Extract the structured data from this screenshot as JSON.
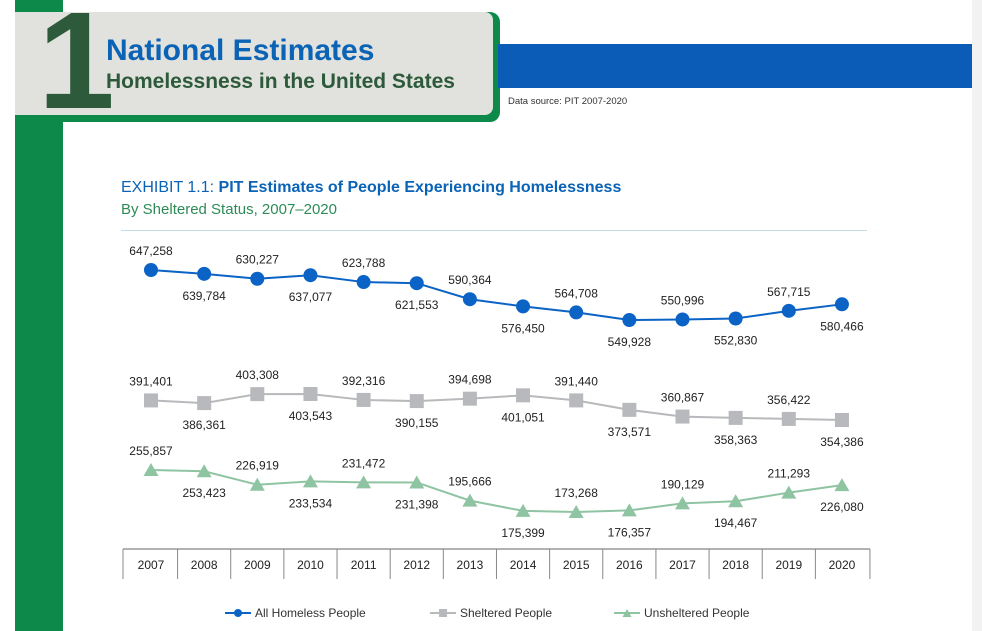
{
  "header": {
    "number": "1",
    "title": "National Estimates",
    "subtitle": "Homelessness in the United States",
    "data_source": "Data source: PIT 2007-2020"
  },
  "exhibit": {
    "label": "EXHIBIT 1.1:",
    "title": "PIT Estimates of People Experiencing Homelessness",
    "subtitle": "By Sheltered Status, 2007–2020"
  },
  "colors": {
    "all": "#0b63c6",
    "sheltered": "#b8b9bc",
    "unsheltered": "#8fc4a2"
  },
  "chart_data": {
    "type": "line",
    "x": [
      "2007",
      "2008",
      "2009",
      "2010",
      "2011",
      "2012",
      "2013",
      "2014",
      "2015",
      "2016",
      "2017",
      "2018",
      "2019",
      "2020"
    ],
    "series": [
      {
        "name": "All Homeless People",
        "values": [
          647258,
          639784,
          630227,
          637077,
          623788,
          621553,
          590364,
          576450,
          564708,
          549928,
          550996,
          552830,
          567715,
          580466
        ],
        "labels": [
          "647,258",
          "639,784",
          "630,227",
          "637,077",
          "623,788",
          "621,553",
          "590,364",
          "576,450",
          "564,708",
          "549,928",
          "550,996",
          "552,830",
          "567,715",
          "580,466"
        ]
      },
      {
        "name": "Sheltered People",
        "values": [
          391401,
          386361,
          403308,
          403543,
          392316,
          390155,
          394698,
          401051,
          391440,
          373571,
          360867,
          358363,
          356422,
          354386
        ],
        "labels": [
          "391,401",
          "386,361",
          "403,308",
          "403,543",
          "392,316",
          "390,155",
          "394,698",
          "401,051",
          "391,440",
          "373,571",
          "360,867",
          "358,363",
          "356,422",
          "354,386"
        ]
      },
      {
        "name": "Unsheltered People",
        "values": [
          255857,
          253423,
          226919,
          233534,
          231472,
          231398,
          195666,
          175399,
          173268,
          176357,
          190129,
          194467,
          211293,
          226080
        ],
        "labels": [
          "255,857",
          "253,423",
          "226,919",
          "233,534",
          "231,472",
          "231,398",
          "195,666",
          "175,399",
          "173,268",
          "176,357",
          "190,129",
          "194,467",
          "211,293",
          "226,080"
        ]
      }
    ],
    "legend_position": "bottom"
  }
}
